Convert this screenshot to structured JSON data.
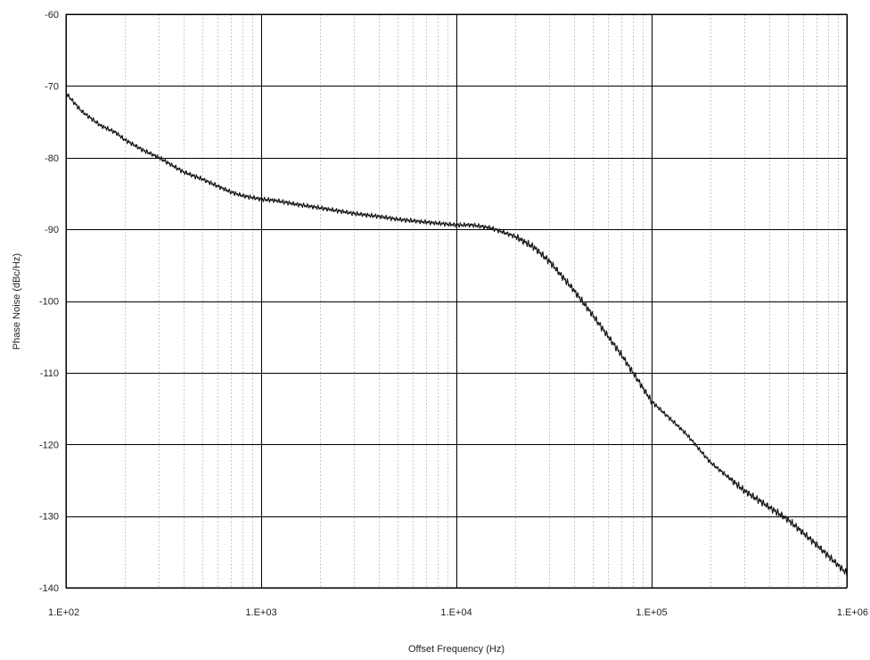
{
  "chart_data": {
    "type": "line",
    "x_scale": "log",
    "xlabel": "Offset Frequency (Hz)",
    "ylabel": "Phase Noise (dBc/Hz)",
    "xlim": [
      100,
      1000000
    ],
    "ylim": [
      -140,
      -60
    ],
    "x_ticks": [
      {
        "value": 100,
        "label": "1.E+02"
      },
      {
        "value": 1000,
        "label": "1.E+03"
      },
      {
        "value": 10000,
        "label": "1.E+04"
      },
      {
        "value": 100000,
        "label": "1.E+05"
      },
      {
        "value": 1000000,
        "label": "1.E+06"
      }
    ],
    "y_ticks": [
      {
        "value": -60,
        "label": "-60"
      },
      {
        "value": -70,
        "label": "-70"
      },
      {
        "value": -80,
        "label": "-80"
      },
      {
        "value": -90,
        "label": "-90"
      },
      {
        "value": -100,
        "label": "-100"
      },
      {
        "value": -110,
        "label": "-110"
      },
      {
        "value": -120,
        "label": "-120"
      },
      {
        "value": -130,
        "label": "-130"
      },
      {
        "value": -140,
        "label": "-140"
      }
    ],
    "grid": {
      "major": true,
      "minor_x": true
    },
    "legend": "none",
    "series": [
      {
        "color": "#111111",
        "x": [
          100,
          120,
          150,
          180,
          200,
          250,
          300,
          400,
          500,
          600,
          700,
          800,
          1000,
          1200,
          1500,
          2000,
          3000,
          4000,
          5000,
          7000,
          10000,
          12000,
          15000,
          20000,
          25000,
          30000,
          40000,
          50000,
          70000,
          100000,
          150000,
          200000,
          300000,
          500000,
          700000,
          1000000
        ],
        "y": [
          -71.0,
          -73.5,
          -75.5,
          -76.5,
          -77.5,
          -79.0,
          -80.0,
          -82.0,
          -83.0,
          -84.0,
          -84.8,
          -85.3,
          -85.8,
          -86.0,
          -86.5,
          -87.0,
          -87.8,
          -88.2,
          -88.6,
          -89.0,
          -89.4,
          -89.4,
          -89.8,
          -91.0,
          -92.5,
          -94.5,
          -98.5,
          -102.0,
          -107.5,
          -114.0,
          -118.5,
          -122.5,
          -126.5,
          -130.5,
          -134.0,
          -138.0
        ]
      }
    ]
  }
}
